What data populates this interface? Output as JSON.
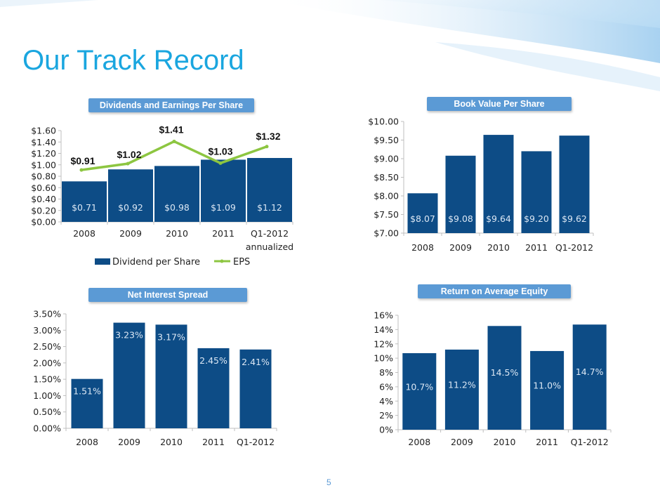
{
  "slide": {
    "title": "Our Track Record",
    "page_number": "5"
  },
  "colors": {
    "title": "#1aa6df",
    "badge": "#5b9ad5",
    "bar": "#0d4c86",
    "eps_line": "#8dc641",
    "axis_text": "#222222",
    "bar_label": "#dbe7f4"
  },
  "chart_data": [
    {
      "type": "bar",
      "title": "Dividends and Earnings Per Share",
      "categories": [
        "2008",
        "2009",
        "2010",
        "2011",
        "Q1-2012 annualized"
      ],
      "series": [
        {
          "name": "Dividend per Share",
          "type": "bar",
          "values": [
            0.71,
            0.92,
            0.98,
            1.09,
            1.12
          ],
          "labels": [
            "$0.71",
            "$0.92",
            "$0.98",
            "$1.09",
            "$1.12"
          ]
        },
        {
          "name": "EPS",
          "type": "line",
          "values": [
            0.91,
            1.02,
            1.41,
            1.03,
            1.32
          ],
          "labels": [
            "$0.91",
            "$1.02",
            "$1.41",
            "$1.03",
            "$1.32"
          ]
        }
      ],
      "ylim": [
        0,
        1.6
      ],
      "yticks": [
        "$0.00",
        "$0.20",
        "$0.40",
        "$0.60",
        "$0.80",
        "$1.00",
        "$1.20",
        "$1.40",
        "$1.60"
      ],
      "legend": "bottom"
    },
    {
      "type": "bar",
      "title": "Book Value Per Share",
      "categories": [
        "2008",
        "2009",
        "2010",
        "2011",
        "Q1-2012"
      ],
      "values": [
        8.07,
        9.08,
        9.64,
        9.2,
        9.62
      ],
      "labels": [
        "$8.07",
        "$9.08",
        "$9.64",
        "$9.20",
        "$9.62"
      ],
      "ylim": [
        7.0,
        10.0
      ],
      "yticks": [
        "$7.00",
        "$7.50",
        "$8.00",
        "$8.50",
        "$9.00",
        "$9.50",
        "$10.00"
      ]
    },
    {
      "type": "bar",
      "title": "Net Interest Spread",
      "categories": [
        "2008",
        "2009",
        "2010",
        "2011",
        "Q1-2012"
      ],
      "values": [
        1.51,
        3.23,
        3.17,
        2.45,
        2.41
      ],
      "labels": [
        "1.51%",
        "3.23%",
        "3.17%",
        "2.45%",
        "2.41%"
      ],
      "ylim": [
        0,
        3.5
      ],
      "yticks": [
        "0.00%",
        "0.50%",
        "1.00%",
        "1.50%",
        "2.00%",
        "2.50%",
        "3.00%",
        "3.50%"
      ]
    },
    {
      "type": "bar",
      "title": "Return on Average Equity",
      "categories": [
        "2008",
        "2009",
        "2010",
        "2011",
        "Q1-2012"
      ],
      "values": [
        10.7,
        11.2,
        14.5,
        11.0,
        14.7
      ],
      "labels": [
        "10.7%",
        "11.2%",
        "14.5%",
        "11.0%",
        "14.7%"
      ],
      "ylim": [
        0,
        16
      ],
      "yticks": [
        "0%",
        "2%",
        "4%",
        "6%",
        "8%",
        "10%",
        "12%",
        "14%",
        "16%"
      ]
    }
  ]
}
